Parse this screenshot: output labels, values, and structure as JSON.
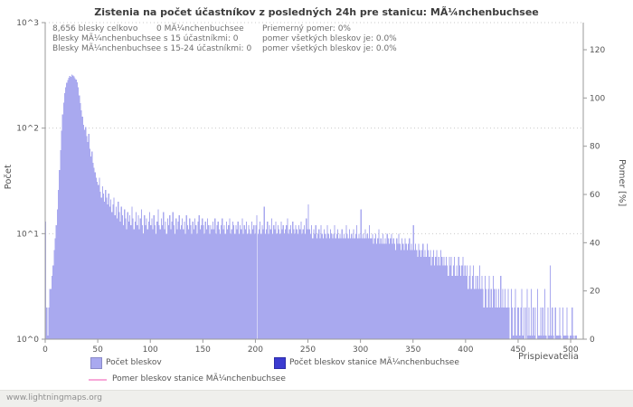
{
  "title": "Zistenia na počet účastníkov z posledných 24h pre stanicu: MÃ¼nchenbuchsee",
  "stats": {
    "line1a": "8,656 blesky celkovo",
    "line1b": "0 MÃ¼nchenbuchsee",
    "line1c": "Priemerný pomer: 0%",
    "line2a": "Blesky MÃ¼nchenbuchsee s 15 účastníkmi: 0",
    "line2b": "pomer všetkých bleskov je: 0.0%",
    "line3a": "Blesky MÃ¼nchenbuchsee s 15-24 účastníkmi: 0",
    "line3b": "pomer všetkých bleskov je: 0.0%"
  },
  "axes": {
    "left_title": "Počet",
    "right_title": "Pomer [%]",
    "x_title": "Prispievatelia"
  },
  "colors": {
    "bar": "#a9a9ef",
    "station": "#3b3bd0",
    "ratio": "#f7a8d8",
    "grid": "#c9c9c9",
    "axis": "#9a9a9a"
  },
  "legend": {
    "items": [
      {
        "label": "Počet bleskov",
        "color": "#a9a9ef",
        "type": "square"
      },
      {
        "label": "Počet bleskov stanice MÃ¼nchenbuchsee",
        "color": "#3b3bd0",
        "type": "square"
      },
      {
        "label": "Pomer bleskov stanice MÃ¼nchenbuchsee",
        "color": "#f7a8d8",
        "type": "line"
      }
    ]
  },
  "footer": {
    "text": "www.lightningmaps.org"
  },
  "chart_data": {
    "type": "bar",
    "title": "Zistenia na počet účastníkov z posledných 24h pre stanicu: MÃ¼nchenbuchsee",
    "xlabel": "Prispievatelia",
    "ylabel": "Počet",
    "ylabel_right": "Pomer [%]",
    "y_scale": "log10",
    "ylim": [
      1,
      1000
    ],
    "xlim": [
      0,
      512
    ],
    "y_ticks": [
      "10^0",
      "10^1",
      "10^2",
      "10^3"
    ],
    "right_ticks": [
      0,
      20,
      40,
      60,
      80,
      100,
      120
    ],
    "x_ticks": [
      0,
      50,
      100,
      150,
      200,
      250,
      300,
      350,
      400,
      450,
      500
    ],
    "grid": "horizontal-dotted",
    "legend_position": "bottom",
    "series": [
      {
        "name": "Počet bleskov",
        "color": "#a9a9ef",
        "type": "bar",
        "values": [
          13,
          2,
          1,
          2,
          3,
          3,
          4,
          5,
          7,
          9,
          12,
          17,
          26,
          40,
          62,
          95,
          135,
          175,
          215,
          245,
          268,
          285,
          300,
          312,
          305,
          322,
          315,
          308,
          298,
          288,
          272,
          245,
          205,
          172,
          148,
          128,
          108,
          96,
          102,
          84,
          74,
          88,
          64,
          54,
          60,
          47,
          42,
          38,
          34,
          31,
          29,
          34,
          25,
          22,
          28,
          24,
          20,
          26,
          22,
          19,
          24,
          18,
          21,
          16,
          19,
          22,
          15,
          18,
          14,
          20,
          16,
          13,
          18,
          15,
          12,
          17,
          14,
          11,
          16,
          13,
          15,
          12,
          18,
          14,
          11,
          13,
          16,
          12,
          15,
          11,
          14,
          17,
          12,
          10,
          15,
          12,
          14,
          11,
          13,
          16,
          12,
          14,
          11,
          15,
          12,
          10,
          13,
          17,
          12,
          11,
          14,
          12,
          16,
          11,
          13,
          10,
          14,
          12,
          15,
          11,
          13,
          16,
          12,
          10,
          14,
          11,
          13,
          15,
          11,
          12,
          14,
          11,
          13,
          10,
          15,
          12,
          11,
          14,
          12,
          10,
          13,
          11,
          14,
          12,
          10,
          13,
          15,
          11,
          12,
          14,
          12,
          10,
          13,
          11,
          14,
          12,
          10,
          12,
          11,
          13,
          11,
          14,
          10,
          12,
          13,
          11,
          10,
          12,
          14,
          11,
          12,
          10,
          13,
          11,
          12,
          14,
          10,
          11,
          13,
          12,
          10,
          12,
          11,
          13,
          10,
          12,
          11,
          14,
          10,
          12,
          11,
          13,
          10,
          12,
          11,
          10,
          13,
          11,
          12,
          10,
          12,
          15,
          10,
          11,
          13,
          10,
          12,
          11,
          18,
          10,
          11,
          13,
          10,
          12,
          11,
          14,
          10,
          12,
          11,
          13,
          10,
          12,
          11,
          10,
          13,
          11,
          12,
          10,
          11,
          12,
          14,
          10,
          11,
          12,
          10,
          13,
          11,
          10,
          12,
          11,
          10,
          12,
          11,
          13,
          10,
          11,
          12,
          10,
          14,
          11,
          19,
          11,
          10,
          12,
          9,
          11,
          10,
          12,
          9,
          10,
          11,
          9,
          12,
          10,
          9,
          11,
          10,
          9,
          12,
          10,
          9,
          11,
          10,
          9,
          10,
          12,
          9,
          10,
          11,
          9,
          10,
          9,
          11,
          9,
          10,
          9,
          12,
          10,
          9,
          11,
          9,
          10,
          9,
          11,
          9,
          10,
          12,
          9,
          10,
          9,
          17,
          9,
          10,
          9,
          11,
          9,
          10,
          9,
          12,
          9,
          9,
          10,
          8,
          9,
          10,
          8,
          9,
          11,
          8,
          9,
          8,
          10,
          8,
          9,
          8,
          10,
          9,
          8,
          9,
          10,
          8,
          9,
          8,
          7,
          9,
          8,
          10,
          8,
          7,
          9,
          8,
          7,
          9,
          8,
          7,
          8,
          9,
          7,
          8,
          7,
          12,
          7,
          8,
          7,
          6,
          8,
          7,
          6,
          7,
          8,
          6,
          7,
          6,
          8,
          7,
          6,
          7,
          5,
          6,
          7,
          5,
          6,
          7,
          5,
          6,
          5,
          7,
          6,
          5,
          6,
          5,
          6,
          5,
          4,
          6,
          5,
          6,
          4,
          5,
          6,
          4,
          5,
          4,
          6,
          5,
          4,
          5,
          6,
          4,
          5,
          4,
          5,
          3,
          4,
          5,
          3,
          4,
          5,
          3,
          4,
          3,
          4,
          3,
          5,
          3,
          4,
          3,
          2,
          4,
          3,
          2,
          3,
          4,
          2,
          3,
          2,
          4,
          3,
          2,
          3,
          2,
          3,
          2,
          4,
          2,
          3,
          2,
          3,
          2,
          2,
          3,
          2,
          0,
          3,
          2,
          1,
          2,
          3,
          1,
          2,
          2,
          1,
          2,
          3,
          1,
          2,
          0,
          2,
          3,
          1,
          2,
          1,
          3,
          1,
          2,
          1,
          2,
          0,
          3,
          1,
          1,
          2,
          1,
          2,
          1,
          3,
          1,
          0,
          2,
          1,
          5,
          1,
          2,
          1,
          0,
          2,
          1,
          1,
          1,
          2,
          1,
          0,
          2,
          1,
          1,
          1,
          2,
          1,
          0,
          1,
          1,
          2,
          1,
          0,
          1,
          1
        ]
      },
      {
        "name": "Počet bleskov stanice MÃ¼nchenbuchsee",
        "color": "#3b3bd0",
        "type": "bar",
        "values": []
      },
      {
        "name": "Pomer bleskov stanice MÃ¼nchenbuchsee",
        "color": "#f7a8d8",
        "type": "line",
        "values": []
      }
    ]
  }
}
